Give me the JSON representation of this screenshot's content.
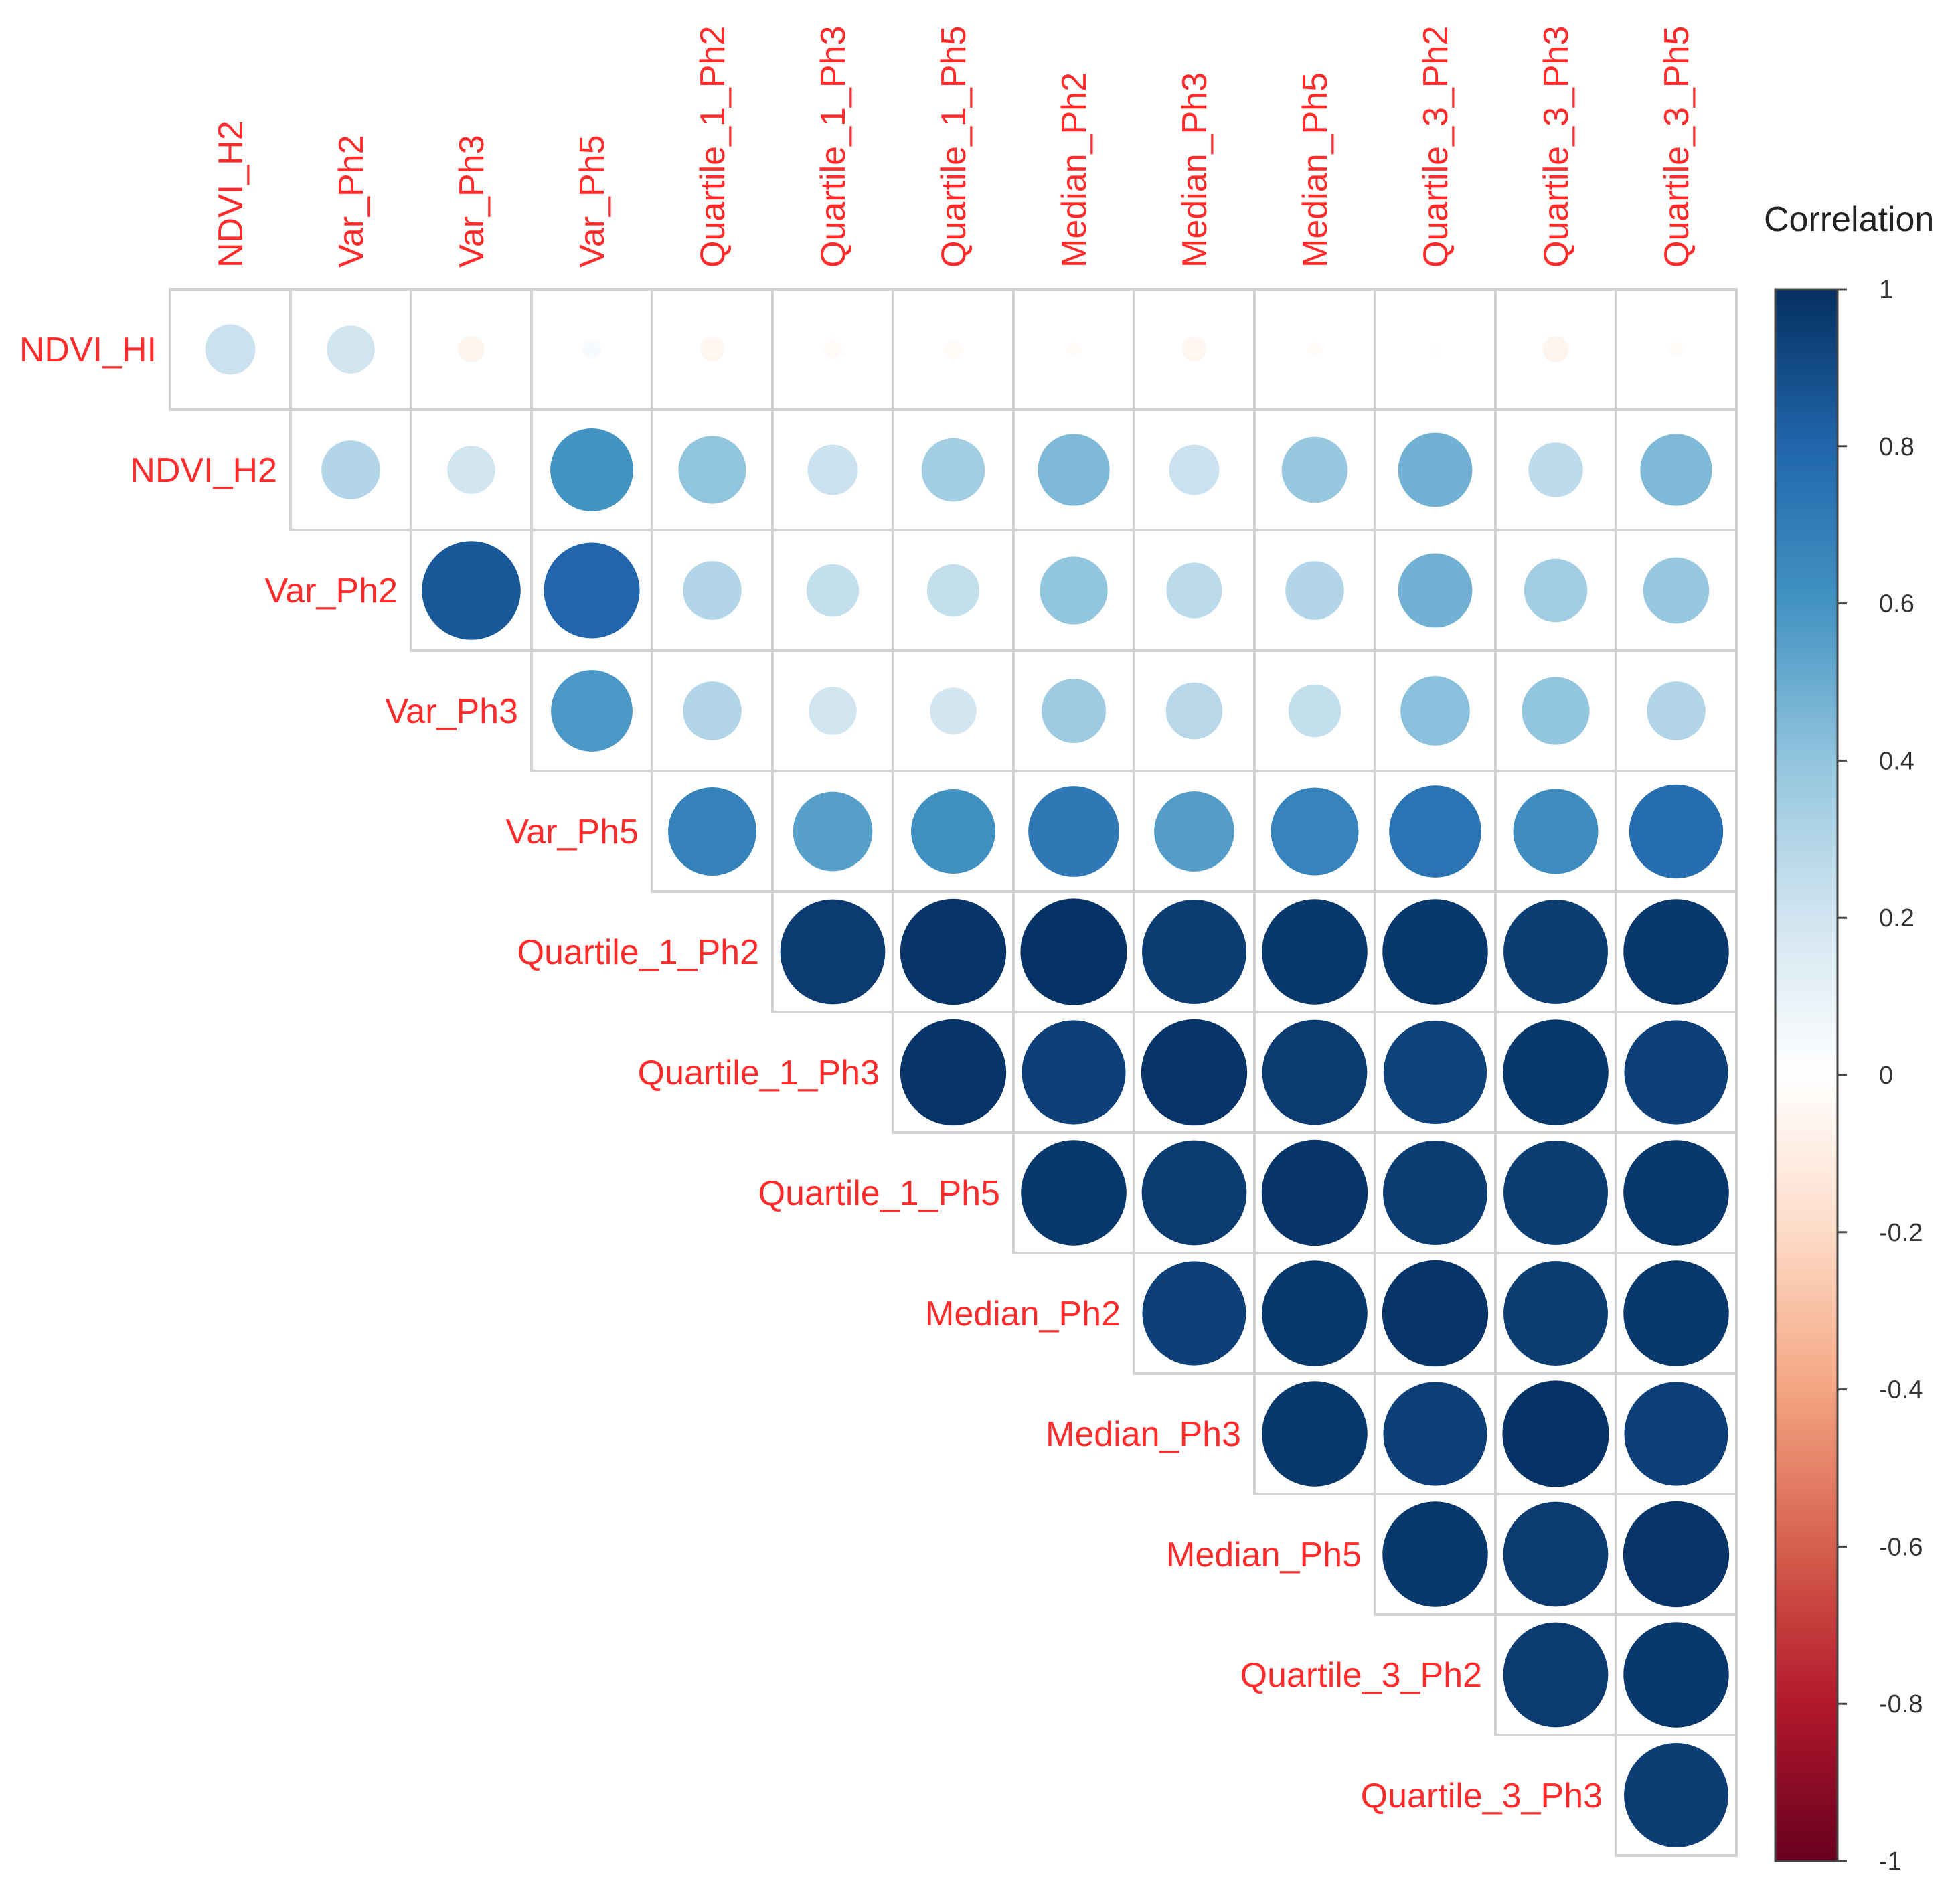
{
  "chart_data": {
    "type": "heatmap",
    "subtype": "upper-triangular correlation plot (circle glyphs)",
    "row_labels": [
      "NDVI_HI",
      "NDVI_H2",
      "Var_Ph2",
      "Var_Ph3",
      "Var_Ph5",
      "Quartile_1_Ph2",
      "Quartile_1_Ph3",
      "Quartile_1_Ph5",
      "Median_Ph2",
      "Median_Ph3",
      "Median_Ph5",
      "Quartile_3_Ph2",
      "Quartile_3_Ph3"
    ],
    "column_labels": [
      "NDVI_H2",
      "Var_Ph2",
      "Var_Ph3",
      "Var_Ph5",
      "Quartile_1_Ph2",
      "Quartile_1_Ph3",
      "Quartile_1_Ph5",
      "Median_Ph2",
      "Median_Ph3",
      "Median_Ph5",
      "Quartile_3_Ph2",
      "Quartile_3_Ph3",
      "Quartile_3_Ph5"
    ],
    "matrix": [
      [
        0.22,
        0.2,
        -0.06,
        0.03,
        -0.05,
        -0.03,
        -0.03,
        -0.02,
        -0.05,
        -0.02,
        -0.01,
        -0.06,
        -0.02
      ],
      [
        null,
        0.3,
        0.2,
        0.6,
        0.4,
        0.22,
        0.35,
        0.45,
        0.22,
        0.38,
        0.48,
        0.26,
        0.45
      ],
      [
        null,
        null,
        0.85,
        0.8,
        0.3,
        0.24,
        0.24,
        0.4,
        0.27,
        0.3,
        0.48,
        0.35,
        0.38
      ],
      [
        null,
        null,
        null,
        0.58,
        0.3,
        0.2,
        0.19,
        0.36,
        0.28,
        0.24,
        0.42,
        0.4,
        0.3
      ],
      [
        null,
        null,
        null,
        null,
        0.68,
        0.55,
        0.62,
        0.72,
        0.56,
        0.67,
        0.74,
        0.63,
        0.77
      ],
      [
        null,
        null,
        null,
        null,
        null,
        0.96,
        0.98,
        0.99,
        0.95,
        0.97,
        0.97,
        0.95,
        0.97
      ],
      [
        null,
        null,
        null,
        null,
        null,
        null,
        0.98,
        0.94,
        0.98,
        0.96,
        0.93,
        0.97,
        0.94
      ],
      [
        null,
        null,
        null,
        null,
        null,
        null,
        null,
        0.97,
        0.96,
        0.98,
        0.95,
        0.95,
        0.97
      ],
      [
        null,
        null,
        null,
        null,
        null,
        null,
        null,
        null,
        0.94,
        0.97,
        0.98,
        0.95,
        0.97
      ],
      [
        null,
        null,
        null,
        null,
        null,
        null,
        null,
        null,
        null,
        0.97,
        0.94,
        0.99,
        0.94
      ],
      [
        null,
        null,
        null,
        null,
        null,
        null,
        null,
        null,
        null,
        null,
        0.97,
        0.96,
        0.98
      ],
      [
        null,
        null,
        null,
        null,
        null,
        null,
        null,
        null,
        null,
        null,
        null,
        0.96,
        0.97
      ],
      [
        null,
        null,
        null,
        null,
        null,
        null,
        null,
        null,
        null,
        null,
        null,
        null,
        0.95
      ]
    ],
    "legend": {
      "title": "Correlation",
      "ticks": [
        "1",
        "0.8",
        "0.6",
        "0.4",
        "0.2",
        "0",
        "-0.2",
        "-0.4",
        "-0.6",
        "-0.8",
        "-1"
      ],
      "range": [
        -1,
        1
      ],
      "position": "right"
    },
    "colors": {
      "label": "#ff2a2a",
      "grid": "#d2d2d2",
      "negative_end": "#67001f",
      "zero": "#ffffff",
      "positive_end": "#053061"
    },
    "colorscale": [
      {
        "value": -1.0,
        "color": "#67001f"
      },
      {
        "value": -0.8,
        "color": "#b2182b"
      },
      {
        "value": -0.6,
        "color": "#d6604d"
      },
      {
        "value": -0.4,
        "color": "#f4a582"
      },
      {
        "value": -0.2,
        "color": "#fddbc7"
      },
      {
        "value": 0.0,
        "color": "#ffffff"
      },
      {
        "value": 0.2,
        "color": "#d1e5f0"
      },
      {
        "value": 0.4,
        "color": "#92c5de"
      },
      {
        "value": 0.6,
        "color": "#4393c3"
      },
      {
        "value": 0.8,
        "color": "#2166ac"
      },
      {
        "value": 1.0,
        "color": "#053061"
      }
    ],
    "xlabel": "",
    "ylabel": ""
  }
}
